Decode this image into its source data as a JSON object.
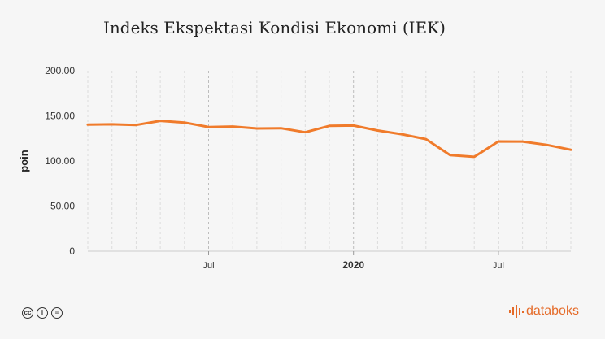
{
  "chart_data": {
    "type": "line",
    "title": "Indeks Ekspektasi Kondisi Ekonomi (IEK)",
    "ylabel": "poin",
    "xlabel": "",
    "ylim": [
      0,
      200
    ],
    "y_ticks": [
      "0",
      "50.00",
      "100.00",
      "150.00",
      "200.00"
    ],
    "y_tick_values": [
      0,
      50,
      100,
      150,
      200
    ],
    "x_ticks": [
      {
        "label": "Jul",
        "index": 5,
        "bold": false
      },
      {
        "label": "2020",
        "index": 11,
        "bold": true
      },
      {
        "label": "Jul",
        "index": 17,
        "bold": false
      }
    ],
    "grid": "vertical dashed",
    "color": "#f07b2b",
    "series": [
      {
        "values": [
          140.3,
          140.6,
          139.9,
          144.5,
          142.6,
          137.7,
          138.2,
          136.0,
          136.3,
          131.8,
          138.9,
          139.3,
          133.8,
          129.6,
          124.2,
          106.5,
          104.6,
          121.6,
          121.5,
          117.8,
          112.4
        ]
      }
    ]
  },
  "footer": {
    "license_icons": [
      "cc-icon",
      "by-icon",
      "nd-icon"
    ],
    "license_glyphs": [
      "cc",
      "i",
      "="
    ],
    "brand": "databoks",
    "brand_color": "#e56b29"
  }
}
